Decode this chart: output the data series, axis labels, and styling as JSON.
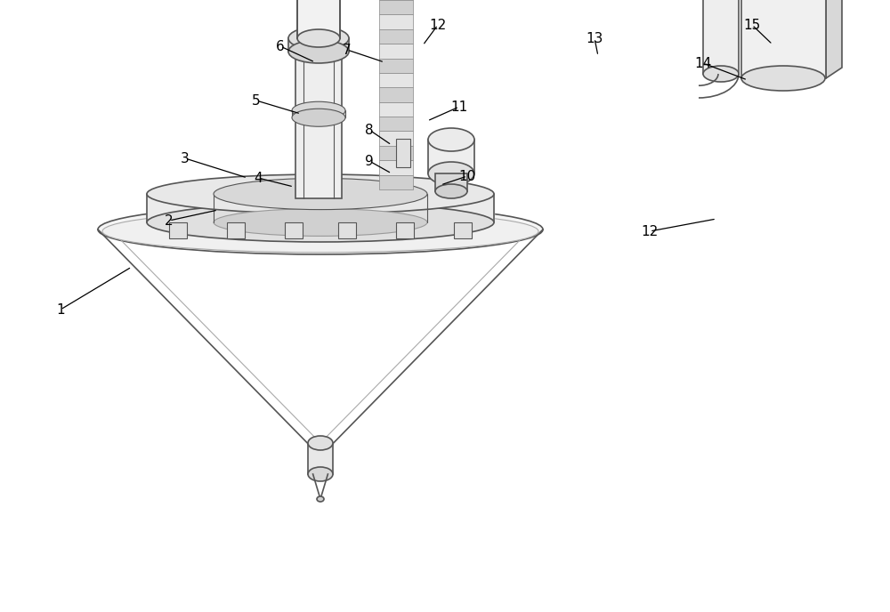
{
  "bg_color": "#ffffff",
  "line_color": "#555555",
  "fig_width": 10.0,
  "fig_height": 6.88,
  "dpi": 100,
  "gray_fill": "#e8e8e8",
  "gray_fill2": "#d8d8d8",
  "gray_fill3": "#f0f0f0",
  "gray_side": "#c8c8c8"
}
